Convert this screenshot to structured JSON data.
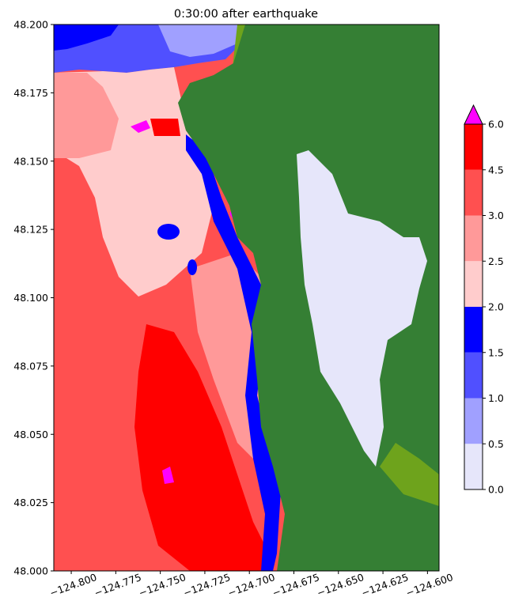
{
  "chart_data": {
    "type": "heatmap",
    "title": "0:30:00 after earthquake",
    "xlabel": "",
    "ylabel": "",
    "xlim": [
      -124.8098,
      -124.5935
    ],
    "ylim": [
      48.0,
      48.2
    ],
    "x_ticks": [
      -124.8,
      -124.775,
      -124.75,
      -124.725,
      -124.7,
      -124.675,
      -124.65,
      -124.625,
      -124.6
    ],
    "x_tick_labels": [
      "−124.800",
      "−124.775",
      "−124.750",
      "−124.725",
      "−124.700",
      "−124.675",
      "−124.650",
      "−124.625",
      "−124.600"
    ],
    "y_ticks": [
      48.0,
      48.025,
      48.05,
      48.075,
      48.1,
      48.125,
      48.15,
      48.175,
      48.2
    ],
    "y_tick_labels": [
      "48.000",
      "48.025",
      "48.050",
      "48.075",
      "48.100",
      "48.125",
      "48.150",
      "48.175",
      "48.200"
    ],
    "colorbar": {
      "levels": [
        0.0,
        0.5,
        1.0,
        1.5,
        2.0,
        2.5,
        3.0,
        4.5,
        6.0
      ],
      "labels": [
        "0.0",
        "0.5",
        "1.0",
        "1.5",
        "2.0",
        "2.5",
        "3.0",
        "4.5",
        "6.0"
      ],
      "colors": [
        "#e6e6fa",
        "#a0a0ff",
        "#5050ff",
        "#0000ff",
        "#ffcccc",
        "#ff9999",
        "#ff5050",
        "#ff0000"
      ],
      "extend_color": "#ff00ff",
      "extend": "max"
    },
    "land_colors": {
      "forest": "#357f34",
      "lowland": "#6ea31c"
    }
  }
}
